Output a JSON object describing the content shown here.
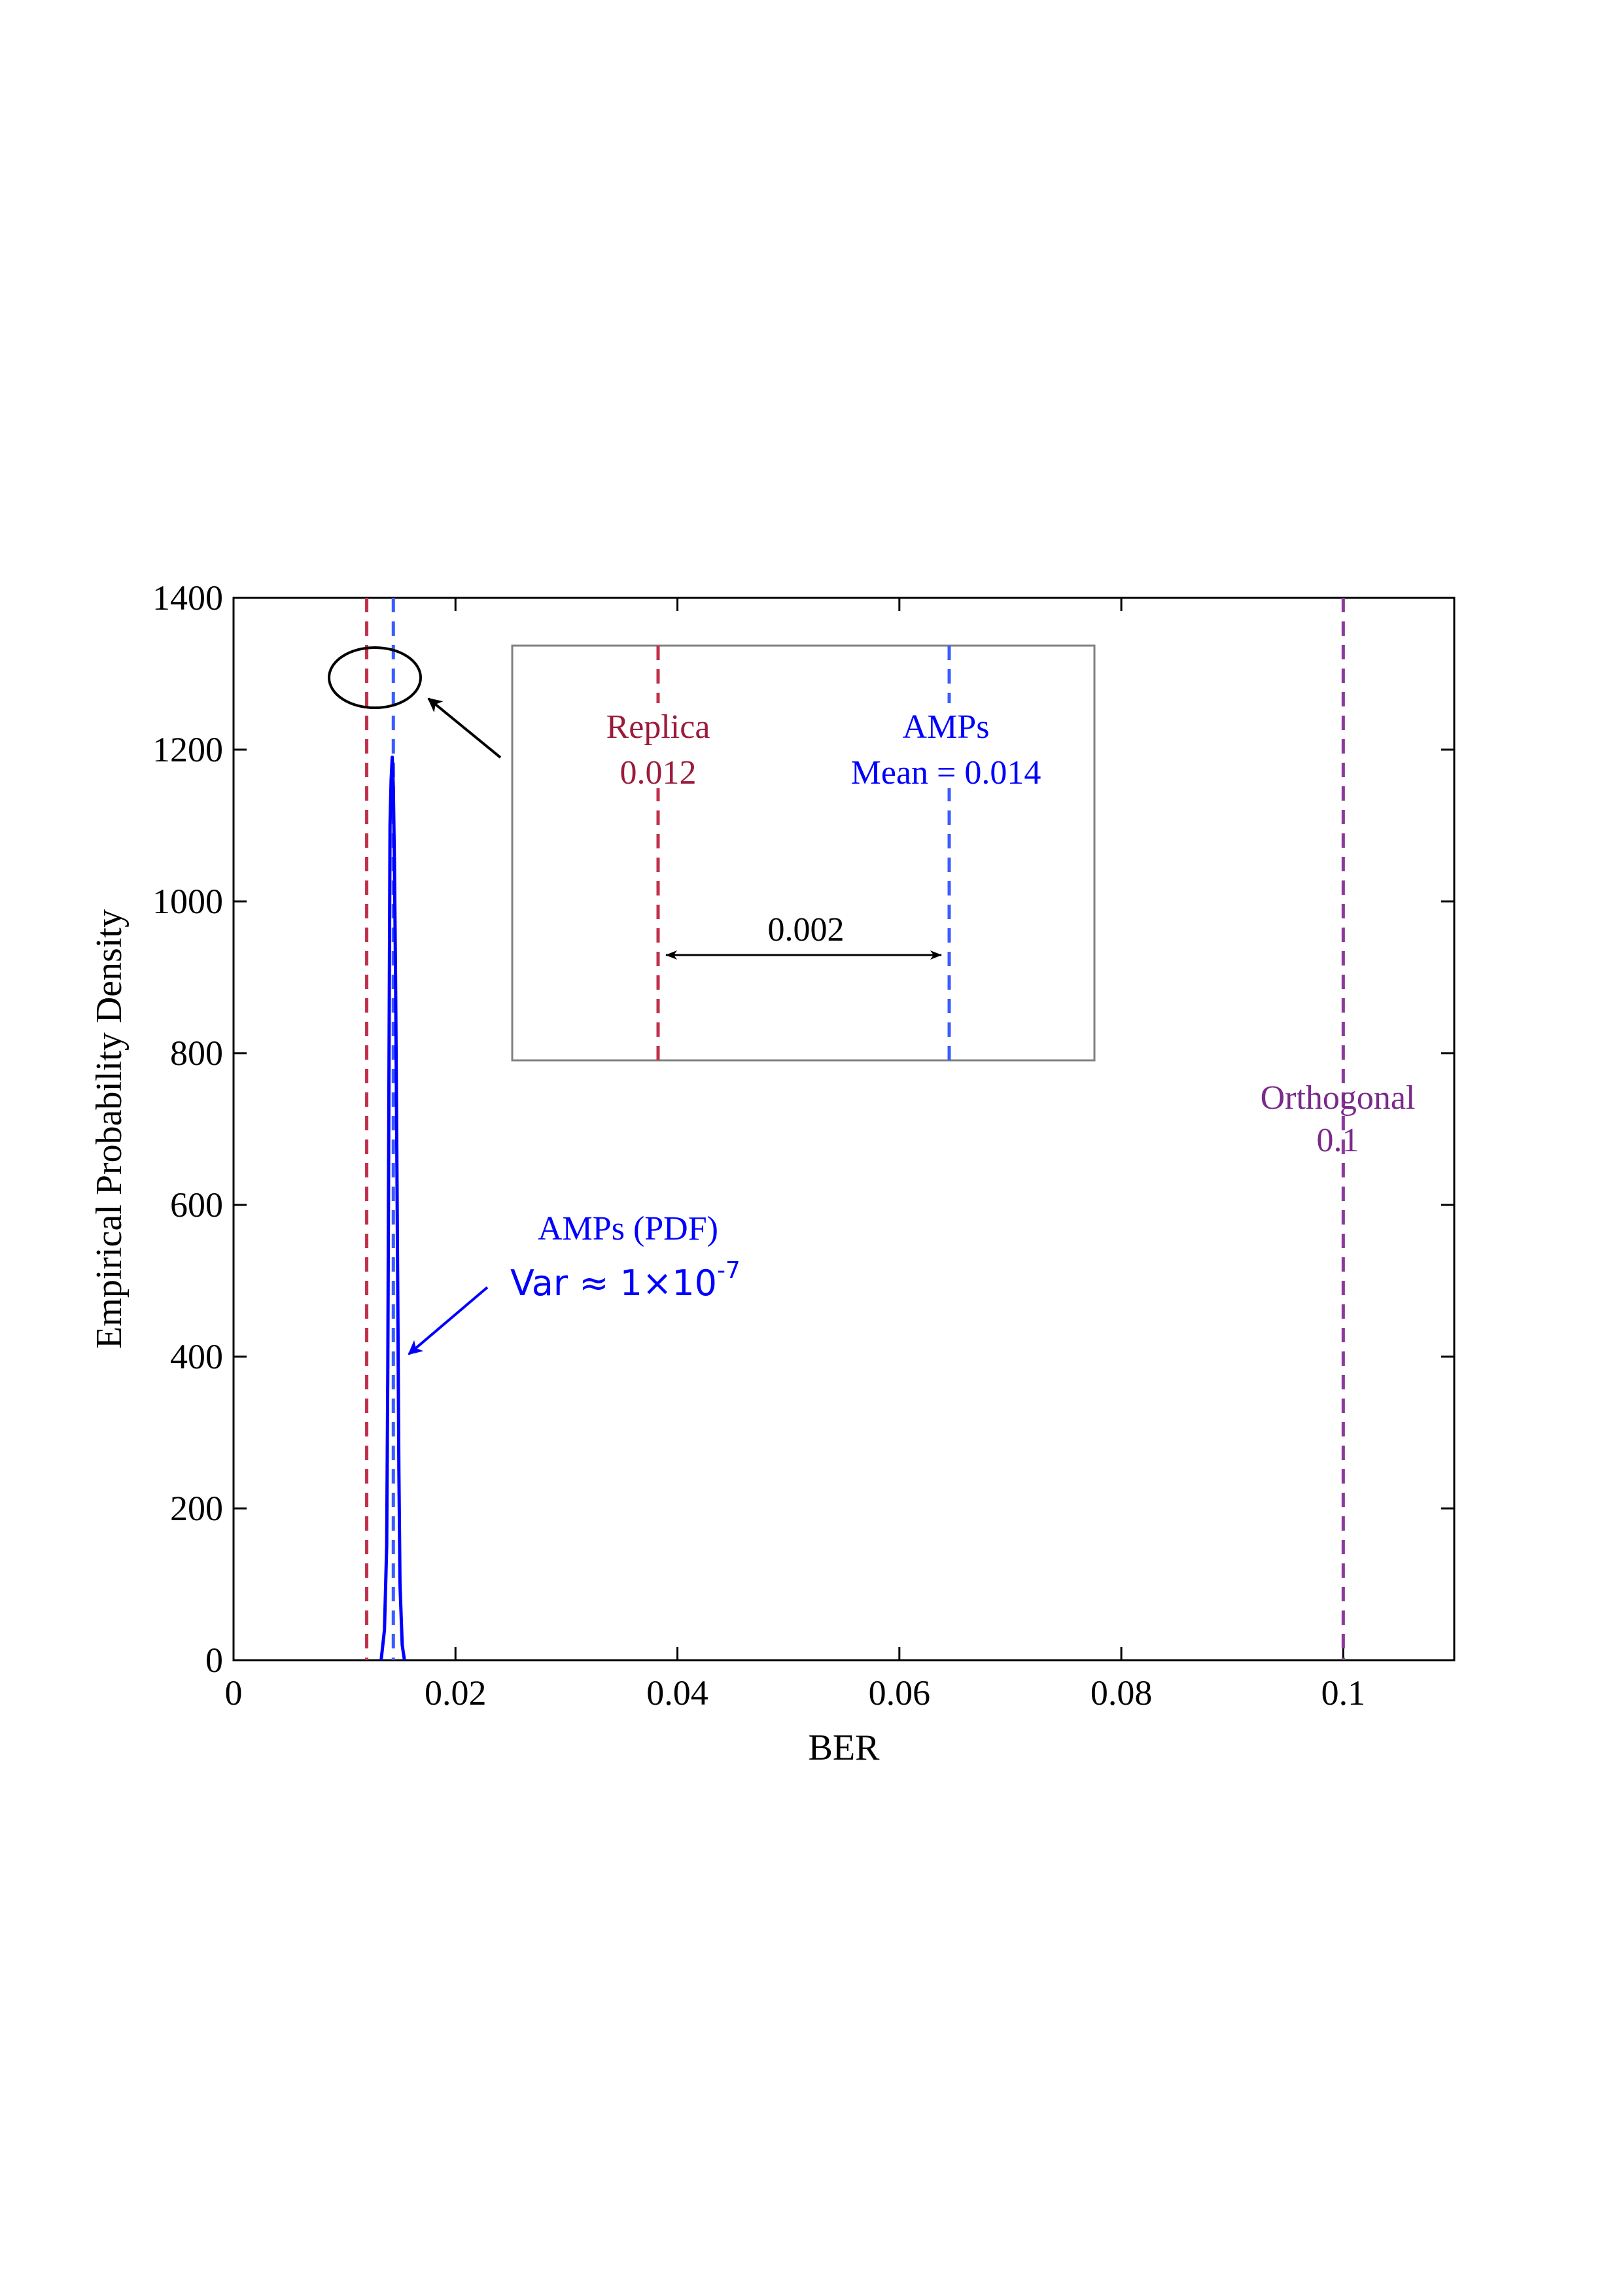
{
  "chart_data": {
    "type": "line",
    "xlabel": "BER",
    "ylabel": "Empirical Probability Density",
    "xlim": [
      0,
      0.11
    ],
    "ylim": [
      0,
      1400
    ],
    "xticks": [
      0,
      0.02,
      0.04,
      0.06,
      0.08,
      0.1
    ],
    "xtick_labels": [
      "0",
      "0.02",
      "0.04",
      "0.06",
      "0.08",
      "0.1"
    ],
    "yticks": [
      0,
      200,
      400,
      600,
      800,
      1000,
      1200,
      1400
    ],
    "ytick_labels": [
      "0",
      "200",
      "400",
      "600",
      "800",
      "1000",
      "1200",
      "1400"
    ],
    "grid": false,
    "series": [
      {
        "name": "AMPs (PDF)",
        "color": "#0000ff",
        "x": [
          0.0133,
          0.0136,
          0.0138,
          0.0139,
          0.014,
          0.0141,
          0.0142,
          0.0143,
          0.0144,
          0.0145,
          0.0146,
          0.0147,
          0.0148,
          0.0149,
          0.015,
          0.0152,
          0.0154
        ],
        "y": [
          0,
          40,
          150,
          380,
          750,
          1100,
          1160,
          1190,
          1150,
          1050,
          900,
          700,
          480,
          250,
          100,
          20,
          0
        ]
      }
    ],
    "vlines": [
      {
        "name": "Replica",
        "x": 0.012,
        "color": "#c0304a"
      },
      {
        "name": "AMPs Mean",
        "x": 0.0144,
        "color": "#3b5cff"
      },
      {
        "name": "Orthogonal",
        "x": 0.1,
        "color": "#8a3a9a"
      }
    ],
    "annotations": {
      "orthogonal_name": "Orthogonal",
      "orthogonal_value": "0.1",
      "pdf_label": "AMPs (PDF)",
      "var_prefix": "Var ≈ 1×10",
      "var_exponent": "-7"
    },
    "inset": {
      "replica_name": "Replica",
      "replica_value": "0.012",
      "amps_name": "AMPs",
      "amps_mean": "Mean = 0.014",
      "gap_label": "0.002"
    }
  },
  "colors": {
    "replica": "#c0304a",
    "replica_text": "#9b1b3a",
    "amps": "#0000ff",
    "amps_dash": "#3b5cff",
    "orthogonal": "#8a3a9a",
    "orthogonal_text": "#7a2a8a",
    "axis": "#000000",
    "inset_border": "#808080"
  }
}
